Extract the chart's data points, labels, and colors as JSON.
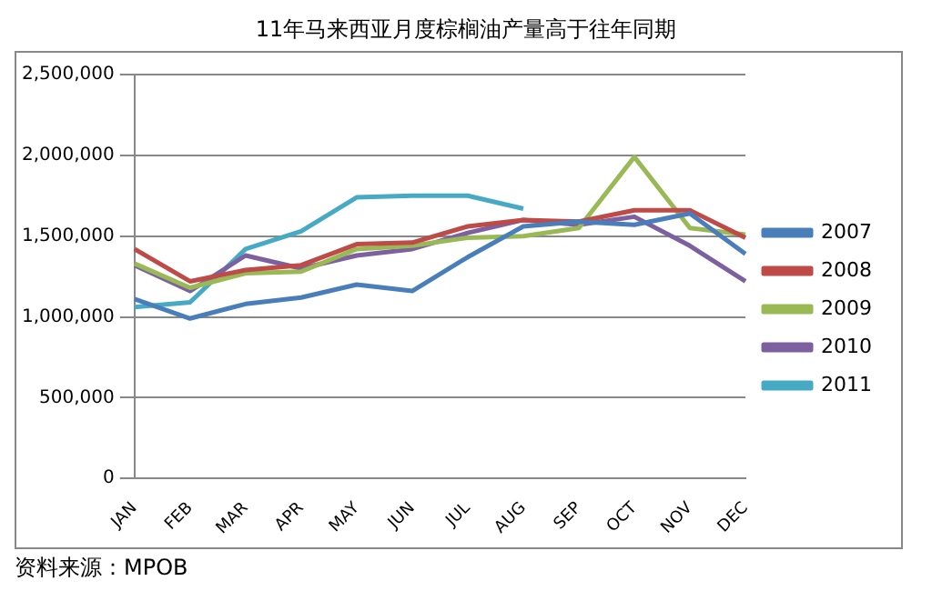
{
  "chart_data": {
    "type": "line",
    "title": "11年马来西亚月度棕榈油产量高于往年同期",
    "categories": [
      "JAN",
      "FEB",
      "MAR",
      "APR",
      "MAY",
      "JUN",
      "JUL",
      "AUG",
      "SEP",
      "OCT",
      "NOV",
      "DEC"
    ],
    "series": [
      {
        "name": "2007",
        "color": "#4a7ebb",
        "values": [
          1110000,
          990000,
          1080000,
          1120000,
          1200000,
          1160000,
          1370000,
          1560000,
          1590000,
          1570000,
          1640000,
          1390000
        ]
      },
      {
        "name": "2008",
        "color": "#be4b48",
        "values": [
          1420000,
          1220000,
          1290000,
          1320000,
          1450000,
          1460000,
          1560000,
          1600000,
          1590000,
          1660000,
          1660000,
          1490000
        ]
      },
      {
        "name": "2009",
        "color": "#98b954",
        "values": [
          1330000,
          1180000,
          1270000,
          1280000,
          1420000,
          1440000,
          1490000,
          1500000,
          1550000,
          1990000,
          1550000,
          1510000
        ]
      },
      {
        "name": "2010",
        "color": "#7d60a0",
        "values": [
          1320000,
          1160000,
          1380000,
          1300000,
          1380000,
          1420000,
          1520000,
          1600000,
          1570000,
          1620000,
          1440000,
          1220000
        ]
      },
      {
        "name": "2011",
        "color": "#46aac5",
        "values": [
          1060000,
          1090000,
          1420000,
          1530000,
          1740000,
          1750000,
          1750000,
          1670000,
          null,
          null,
          null,
          null
        ]
      }
    ],
    "ylim": [
      0,
      2500000
    ],
    "yticks": [
      {
        "value": 0,
        "label": "0"
      },
      {
        "value": 500000,
        "label": "500,000"
      },
      {
        "value": 1000000,
        "label": "1,000,000"
      },
      {
        "value": 1500000,
        "label": "1,500,000"
      },
      {
        "value": 2000000,
        "label": "2,000,000"
      },
      {
        "value": 2500000,
        "label": "2,500,000"
      }
    ],
    "grid": "y",
    "legend": "right",
    "marker": "none",
    "line_style": "solid",
    "annotations": [
      "资料来源：MPOB"
    ]
  }
}
